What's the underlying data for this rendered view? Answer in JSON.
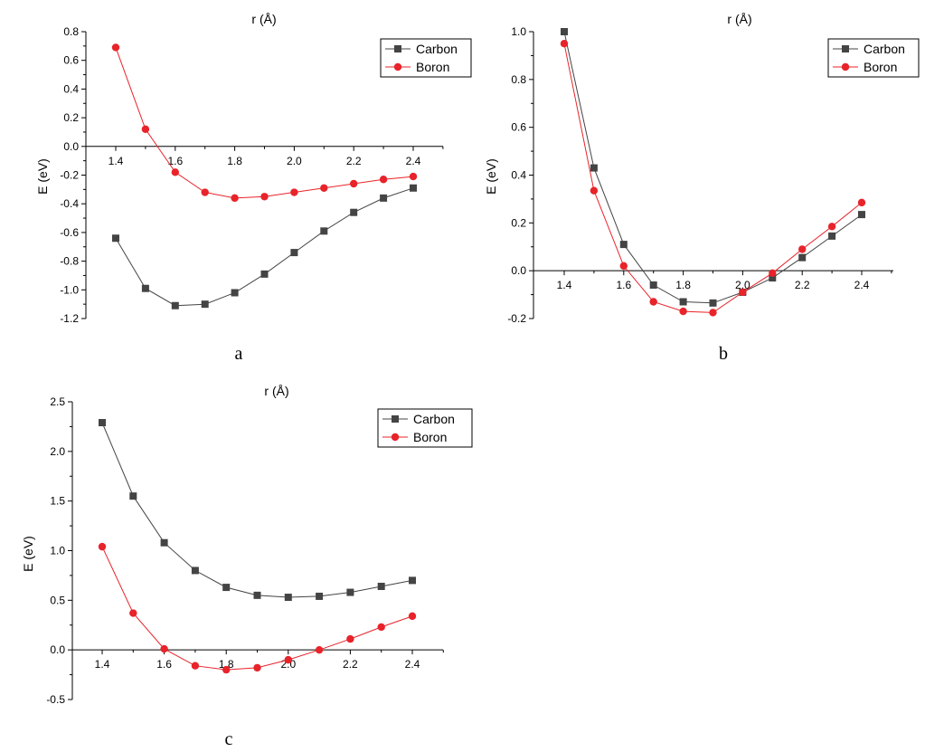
{
  "chart_data": [
    {
      "type": "line",
      "panel_label": "a",
      "xlabel": "r (Å)",
      "ylabel": "E (eV)",
      "xlim": [
        1.4,
        2.4
      ],
      "ylim": [
        -1.2,
        0.8
      ],
      "x_ticks": [
        "1.4",
        "1.6",
        "1.8",
        "2.0",
        "2.2",
        "2.4"
      ],
      "y_ticks": [
        "0.8",
        "0.6",
        "0.4",
        "0.2",
        "0.0",
        "-0.2",
        "-0.4",
        "-0.6",
        "-0.8",
        "-1.0",
        "-1.2"
      ],
      "x": [
        1.4,
        1.5,
        1.6,
        1.7,
        1.8,
        1.9,
        2.0,
        2.1,
        2.2,
        2.3,
        2.4
      ],
      "legend_position": "top-right",
      "series": [
        {
          "name": "Carbon",
          "color": "#444444",
          "marker": "square",
          "values": [
            -0.64,
            -0.99,
            -1.11,
            -1.1,
            -1.02,
            -0.89,
            -0.74,
            -0.59,
            -0.46,
            -0.36,
            -0.29
          ]
        },
        {
          "name": "Boron",
          "color": "#e8232a",
          "marker": "circle",
          "values": [
            0.69,
            0.12,
            -0.18,
            -0.32,
            -0.36,
            -0.35,
            -0.32,
            -0.29,
            -0.26,
            -0.23,
            -0.21
          ]
        }
      ]
    },
    {
      "type": "line",
      "panel_label": "b",
      "xlabel": "r (Å)",
      "ylabel": "E (eV)",
      "xlim": [
        1.4,
        2.4
      ],
      "ylim": [
        -0.2,
        1.0
      ],
      "x_ticks": [
        "1.4",
        "1.6",
        "1.8",
        "2.0",
        "2.2",
        "2.4"
      ],
      "y_ticks": [
        "1.0",
        "0.8",
        "0.6",
        "0.4",
        "0.2",
        "0.0",
        "-0.2"
      ],
      "x": [
        1.4,
        1.5,
        1.6,
        1.7,
        1.8,
        1.9,
        2.0,
        2.1,
        2.2,
        2.3,
        2.4
      ],
      "legend_position": "top-right",
      "series": [
        {
          "name": "Carbon",
          "color": "#444444",
          "marker": "square",
          "values": [
            1.0,
            0.43,
            0.11,
            -0.06,
            -0.13,
            -0.135,
            -0.09,
            -0.03,
            0.055,
            0.145,
            0.235
          ]
        },
        {
          "name": "Boron",
          "color": "#e8232a",
          "marker": "circle",
          "values": [
            0.95,
            0.335,
            0.02,
            -0.13,
            -0.17,
            -0.175,
            -0.09,
            -0.01,
            0.09,
            0.185,
            0.285
          ]
        }
      ]
    },
    {
      "type": "line",
      "panel_label": "c",
      "xlabel": "r (Å)",
      "ylabel": "E (eV)",
      "xlim": [
        1.4,
        2.4
      ],
      "ylim": [
        -0.5,
        2.5
      ],
      "x_ticks": [
        "1.4",
        "1.6",
        "1.8",
        "2.0",
        "2.2",
        "2.4"
      ],
      "y_ticks": [
        "2.5",
        "2.0",
        "1.5",
        "1.0",
        "0.5",
        "0.0",
        "-0.5"
      ],
      "x": [
        1.4,
        1.5,
        1.6,
        1.7,
        1.8,
        1.9,
        2.0,
        2.1,
        2.2,
        2.3,
        2.4
      ],
      "legend_position": "top-right",
      "series": [
        {
          "name": "Carbon",
          "color": "#444444",
          "marker": "square",
          "values": [
            2.29,
            1.55,
            1.08,
            0.8,
            0.63,
            0.55,
            0.53,
            0.54,
            0.58,
            0.64,
            0.7
          ]
        },
        {
          "name": "Boron",
          "color": "#e8232a",
          "marker": "circle",
          "values": [
            1.04,
            0.37,
            0.01,
            -0.16,
            -0.2,
            -0.18,
            -0.1,
            0.0,
            0.11,
            0.23,
            0.34
          ]
        }
      ]
    }
  ]
}
